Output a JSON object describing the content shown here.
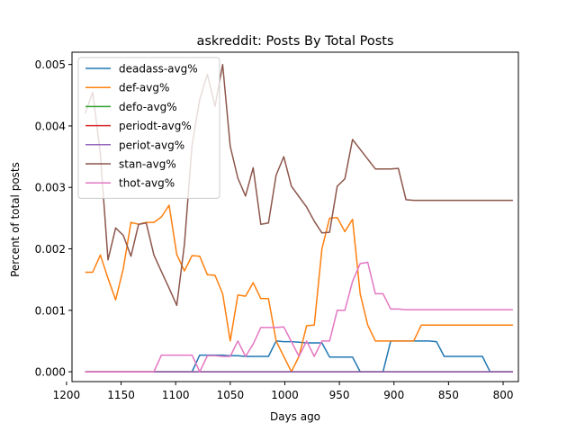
{
  "chart_data": {
    "type": "line",
    "title": "askreddit: Posts By Total Posts",
    "xlabel": "Days ago",
    "ylabel": "Percent of total posts",
    "x_reversed": true,
    "xlim": [
      1195,
      786
    ],
    "ylim": [
      -0.00016,
      0.0052
    ],
    "xticks": [
      1200,
      1150,
      1100,
      1050,
      1000,
      950,
      900,
      850,
      800
    ],
    "xtick_labels": [
      "1200",
      "1150",
      "1100",
      "1050",
      "1000",
      "950",
      "900",
      "850",
      "800"
    ],
    "yticks": [
      0.0,
      0.001,
      0.002,
      0.003,
      0.004,
      0.005
    ],
    "ytick_labels": [
      "0.000",
      "0.001",
      "0.002",
      "0.003",
      "0.004",
      "0.005"
    ],
    "grid": false,
    "legend_position": "top-left",
    "series": [
      {
        "name": "deadass-avg%",
        "color": "#1f77b4",
        "points": [
          [
            1183,
            0
          ],
          [
            1176,
            0
          ],
          [
            1169,
            0
          ],
          [
            1162,
            0
          ],
          [
            1155,
            0
          ],
          [
            1148,
            0
          ],
          [
            1141,
            0
          ],
          [
            1134,
            0
          ],
          [
            1127,
            0
          ],
          [
            1120,
            0
          ],
          [
            1113,
            0
          ],
          [
            1106,
            0
          ],
          [
            1099,
            0
          ],
          [
            1092,
            0
          ],
          [
            1085,
            5e-07
          ],
          [
            1078,
            0.00027
          ],
          [
            1071,
            0.00027
          ],
          [
            1064,
            0.00027
          ],
          [
            1057,
            0.00027
          ],
          [
            1050,
            0.00026
          ],
          [
            1043,
            0.00026
          ],
          [
            1036,
            0.00025
          ],
          [
            1029,
            0.00025
          ],
          [
            1022,
            0.00025
          ],
          [
            1015,
            0.00025
          ],
          [
            1008,
            0.0005
          ],
          [
            1001,
            0.00049
          ],
          [
            994,
            0.00049
          ],
          [
            987,
            0.00048
          ],
          [
            980,
            0.00047
          ],
          [
            973,
            0.00047
          ],
          [
            966,
            0.00047
          ],
          [
            959,
            0.00024
          ],
          [
            952,
            0.00024
          ],
          [
            945,
            0.00024
          ],
          [
            938,
            0.00024
          ],
          [
            931,
            0
          ],
          [
            924,
            0
          ],
          [
            917,
            0
          ],
          [
            910,
            0
          ],
          [
            903,
            0.0005
          ],
          [
            896,
            0.0005
          ],
          [
            889,
            0.0005
          ],
          [
            882,
            0.0005
          ],
          [
            875,
            0.0005
          ],
          [
            868,
            0.0005
          ],
          [
            861,
            0.00049
          ],
          [
            854,
            0.00025
          ],
          [
            847,
            0.00025
          ],
          [
            840,
            0.00025
          ],
          [
            833,
            0.00025
          ],
          [
            826,
            0.00025
          ],
          [
            819,
            0.00025
          ],
          [
            812,
            0
          ],
          [
            805,
            0
          ],
          [
            798,
            0
          ],
          [
            791,
            0
          ]
        ]
      },
      {
        "name": "def-avg%",
        "color": "#ff7f0e",
        "points": [
          [
            1183,
            0.00162
          ],
          [
            1176,
            0.00162
          ],
          [
            1169,
            0.0019
          ],
          [
            1162,
            0.00152
          ],
          [
            1155,
            0.00117
          ],
          [
            1148,
            0.00168
          ],
          [
            1141,
            0.00243
          ],
          [
            1134,
            0.0024
          ],
          [
            1127,
            0.00243
          ],
          [
            1120,
            0.00243
          ],
          [
            1113,
            0.00252
          ],
          [
            1106,
            0.00271
          ],
          [
            1099,
            0.00191
          ],
          [
            1092,
            0.00164
          ],
          [
            1085,
            0.00189
          ],
          [
            1078,
            0.00188
          ],
          [
            1071,
            0.00158
          ],
          [
            1064,
            0.00157
          ],
          [
            1057,
            0.00127
          ],
          [
            1050,
            0.0005
          ],
          [
            1043,
            0.00125
          ],
          [
            1036,
            0.00123
          ],
          [
            1029,
            0.00145
          ],
          [
            1022,
            0.00119
          ],
          [
            1015,
            0.00119
          ],
          [
            1008,
            0.0005
          ],
          [
            1001,
            0.00025
          ],
          [
            994,
            0
          ],
          [
            987,
            0.00025
          ],
          [
            980,
            0.00075
          ],
          [
            973,
            0.00076
          ],
          [
            966,
            0.002
          ],
          [
            959,
            0.0025
          ],
          [
            952,
            0.00251
          ],
          [
            945,
            0.00228
          ],
          [
            938,
            0.00248
          ],
          [
            931,
            0.00127
          ],
          [
            924,
            0.00076
          ],
          [
            917,
            0.0005
          ],
          [
            910,
            0.0005
          ],
          [
            903,
            0.0005
          ],
          [
            896,
            0.0005
          ],
          [
            889,
            0.0005
          ],
          [
            882,
            0.0005
          ],
          [
            875,
            0.00076
          ],
          [
            868,
            0.00076
          ],
          [
            861,
            0.00076
          ],
          [
            854,
            0.00076
          ],
          [
            847,
            0.00076
          ],
          [
            840,
            0.00076
          ],
          [
            833,
            0.00076
          ],
          [
            826,
            0.00076
          ],
          [
            819,
            0.00076
          ],
          [
            812,
            0.00076
          ],
          [
            805,
            0.00076
          ],
          [
            798,
            0.00076
          ],
          [
            791,
            0.00076
          ]
        ]
      },
      {
        "name": "defo-avg%",
        "color": "#2ca02c",
        "points": [
          [
            1183,
            0
          ],
          [
            791,
            0
          ]
        ]
      },
      {
        "name": "periodt-avg%",
        "color": "#d62728",
        "points": [
          [
            1183,
            0
          ],
          [
            791,
            0
          ]
        ]
      },
      {
        "name": "periot-avg%",
        "color": "#9467bd",
        "points": [
          [
            1183,
            0
          ],
          [
            791,
            0
          ]
        ]
      },
      {
        "name": "stan-avg%",
        "color": "#8c564b",
        "points": [
          [
            1183,
            0.0042
          ],
          [
            1176,
            0.00455
          ],
          [
            1169,
            0.00355
          ],
          [
            1162,
            0.00182
          ],
          [
            1155,
            0.00234
          ],
          [
            1148,
            0.00222
          ],
          [
            1141,
            0.00188
          ],
          [
            1134,
            0.0024
          ],
          [
            1127,
            0.00242
          ],
          [
            1120,
            0.0019
          ],
          [
            1113,
            0.00163
          ],
          [
            1106,
            0.00136
          ],
          [
            1099,
            0.00108
          ],
          [
            1092,
            0.00207
          ],
          [
            1085,
            0.00369
          ],
          [
            1078,
            0.00443
          ],
          [
            1071,
            0.00484
          ],
          [
            1064,
            0.00432
          ],
          [
            1057,
            0.005
          ],
          [
            1050,
            0.00367
          ],
          [
            1043,
            0.00315
          ],
          [
            1036,
            0.00286
          ],
          [
            1029,
            0.00332
          ],
          [
            1022,
            0.0024
          ],
          [
            1015,
            0.00242
          ],
          [
            1008,
            0.0032
          ],
          [
            1001,
            0.0035
          ],
          [
            994,
            0.00302
          ],
          [
            987,
            0.00285
          ],
          [
            980,
            0.00268
          ],
          [
            973,
            0.00245
          ],
          [
            966,
            0.00226
          ],
          [
            959,
            0.00227
          ],
          [
            952,
            0.00302
          ],
          [
            945,
            0.00314
          ],
          [
            938,
            0.00378
          ],
          [
            931,
            0.00362
          ],
          [
            924,
            0.00346
          ],
          [
            917,
            0.0033
          ],
          [
            910,
            0.0033
          ],
          [
            903,
            0.0033
          ],
          [
            896,
            0.00331
          ],
          [
            889,
            0.0028
          ],
          [
            882,
            0.00279
          ],
          [
            875,
            0.00279
          ],
          [
            868,
            0.00279
          ],
          [
            861,
            0.00279
          ],
          [
            854,
            0.00279
          ],
          [
            847,
            0.00279
          ],
          [
            840,
            0.00279
          ],
          [
            833,
            0.00279
          ],
          [
            826,
            0.00279
          ],
          [
            819,
            0.00279
          ],
          [
            812,
            0.00279
          ],
          [
            805,
            0.00279
          ],
          [
            798,
            0.00279
          ],
          [
            791,
            0.00279
          ]
        ]
      },
      {
        "name": "thot-avg%",
        "color": "#e377c2",
        "points": [
          [
            1183,
            0
          ],
          [
            1176,
            0
          ],
          [
            1169,
            0
          ],
          [
            1162,
            0
          ],
          [
            1155,
            0
          ],
          [
            1148,
            0
          ],
          [
            1141,
            0
          ],
          [
            1134,
            0
          ],
          [
            1127,
            0
          ],
          [
            1120,
            0
          ],
          [
            1113,
            0.00027
          ],
          [
            1106,
            0.00027
          ],
          [
            1099,
            0.00027
          ],
          [
            1092,
            0.00027
          ],
          [
            1085,
            0.00027
          ],
          [
            1078,
            0
          ],
          [
            1071,
            0.00026
          ],
          [
            1064,
            0.00026
          ],
          [
            1057,
            0.00025
          ],
          [
            1050,
            0.00025
          ],
          [
            1043,
            0.0005
          ],
          [
            1036,
            0.00025
          ],
          [
            1029,
            0.00045
          ],
          [
            1022,
            0.00072
          ],
          [
            1015,
            0.00072
          ],
          [
            1008,
            0.00072
          ],
          [
            1001,
            0.00073
          ],
          [
            994,
            0.00049
          ],
          [
            987,
            0.00025
          ],
          [
            980,
            0.0005
          ],
          [
            973,
            0.00025
          ],
          [
            966,
            0.0005
          ],
          [
            959,
            0.0005
          ],
          [
            952,
            0.001
          ],
          [
            945,
            0.001
          ],
          [
            938,
            0.00147
          ],
          [
            931,
            0.00176
          ],
          [
            924,
            0.00178
          ],
          [
            917,
            0.00127
          ],
          [
            910,
            0.00127
          ],
          [
            903,
            0.00102
          ],
          [
            896,
            0.00102
          ],
          [
            889,
            0.00101
          ],
          [
            882,
            0.00101
          ],
          [
            875,
            0.00101
          ],
          [
            868,
            0.00101
          ],
          [
            861,
            0.00101
          ],
          [
            854,
            0.00101
          ],
          [
            847,
            0.00101
          ],
          [
            840,
            0.00101
          ],
          [
            833,
            0.00101
          ],
          [
            826,
            0.00101
          ],
          [
            819,
            0.00101
          ],
          [
            812,
            0.00101
          ],
          [
            805,
            0.00101
          ],
          [
            798,
            0.00101
          ],
          [
            791,
            0.00101
          ]
        ]
      }
    ]
  }
}
